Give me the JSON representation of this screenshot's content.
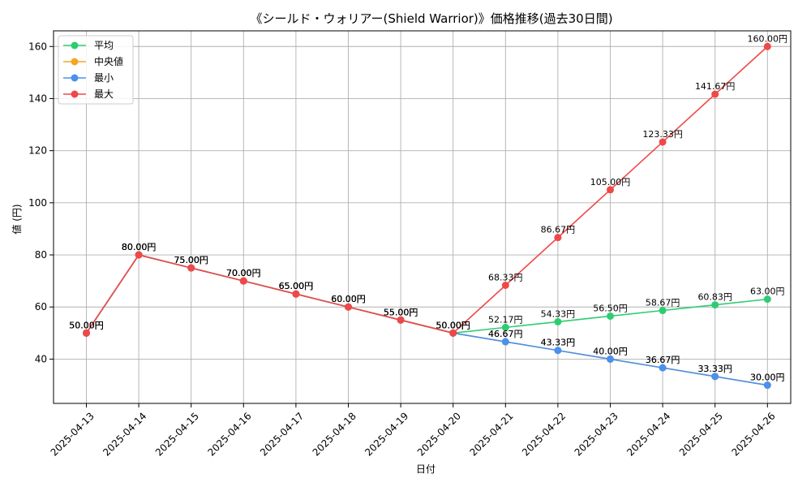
{
  "chart_data": {
    "type": "line",
    "title": "《シールド・ウォリアー(Shield Warrior)》価格推移(過去30日間)",
    "xlabel": "日付",
    "ylabel": "値 (円)",
    "ylim": [
      23,
      166
    ],
    "yticks": [
      40,
      60,
      80,
      100,
      120,
      140,
      160
    ],
    "grid": true,
    "legend_position": "top-left",
    "label_suffix": "円",
    "categories": [
      "2025-04-13",
      "2025-04-14",
      "2025-04-15",
      "2025-04-16",
      "2025-04-17",
      "2025-04-18",
      "2025-04-19",
      "2025-04-20",
      "2025-04-21",
      "2025-04-22",
      "2025-04-23",
      "2025-04-24",
      "2025-04-25",
      "2025-04-26"
    ],
    "series": [
      {
        "name": "平均",
        "color": "#2ecc71",
        "values": [
          50.0,
          80.0,
          75.0,
          70.0,
          65.0,
          60.0,
          55.0,
          50.0,
          52.17,
          54.33,
          56.5,
          58.67,
          60.83,
          63.0
        ]
      },
      {
        "name": "中央値",
        "color": "#f5a623",
        "values": [
          50.0,
          80.0,
          75.0,
          70.0,
          65.0,
          60.0,
          55.0,
          50.0,
          46.67,
          43.33,
          40.0,
          36.67,
          33.33,
          30.0
        ]
      },
      {
        "name": "最小",
        "color": "#4a90f0",
        "values": [
          50.0,
          80.0,
          75.0,
          70.0,
          65.0,
          60.0,
          55.0,
          50.0,
          46.67,
          43.33,
          40.0,
          36.67,
          33.33,
          30.0
        ]
      },
      {
        "name": "最大",
        "color": "#f04848",
        "values": [
          50.0,
          80.0,
          75.0,
          70.0,
          65.0,
          60.0,
          55.0,
          50.0,
          68.33,
          86.67,
          105.0,
          123.33,
          141.67,
          160.0
        ]
      }
    ]
  }
}
